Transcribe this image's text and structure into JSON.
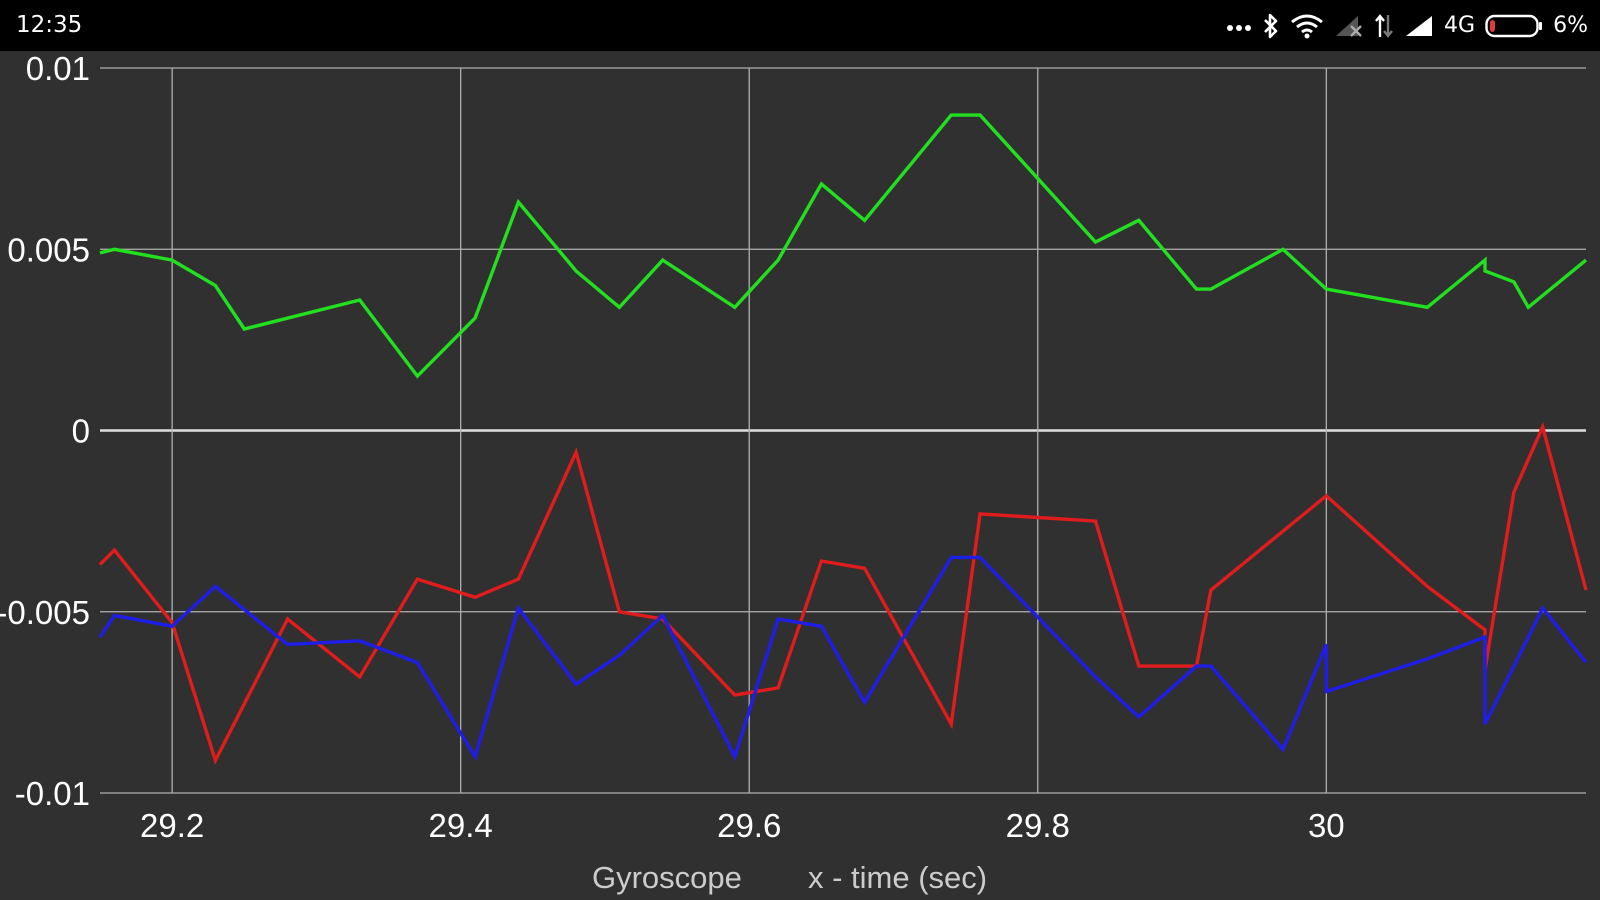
{
  "status_bar": {
    "time": "12:35",
    "network_label": "4G",
    "battery_label": "6%",
    "icons": [
      "more-dots-icon",
      "bluetooth-icon",
      "wifi-icon",
      "signal-no-sim-icon",
      "data-transfer-icon",
      "signal-icon",
      "battery-icon"
    ]
  },
  "chart_data": {
    "type": "line",
    "title": "",
    "footer_labels": [
      "Gyroscope",
      "x - time (sec)"
    ],
    "xlabel": "x - time (sec)",
    "ylabel": "",
    "xlim": [
      29.15,
      30.18
    ],
    "ylim": [
      -0.01,
      0.01
    ],
    "x_ticks": [
      29.2,
      29.4,
      29.6,
      29.8,
      30
    ],
    "x_tick_labels": [
      "29.2",
      "29.4",
      "29.6",
      "29.8",
      "30"
    ],
    "y_ticks": [
      0.01,
      0.005,
      0,
      -0.005,
      -0.01
    ],
    "y_tick_labels": [
      "0.01",
      "0.005",
      "0",
      "-0.005",
      "-0.01"
    ],
    "grid": true,
    "background": "#303030",
    "grid_color": "#b0b0b0",
    "zero_line_color": "#e0e0e0",
    "series": [
      {
        "color": "#22e01f",
        "x": [
          29.15,
          29.16,
          29.2,
          29.23,
          29.25,
          29.33,
          29.37,
          29.41,
          29.44,
          29.48,
          29.48,
          29.51,
          29.54,
          29.59,
          29.62,
          29.65,
          29.68,
          29.74,
          29.76,
          29.84,
          29.87,
          29.91,
          29.92,
          29.97,
          30.0,
          30.07,
          30.11,
          30.11,
          30.13,
          30.14,
          30.18
        ],
        "y": [
          0.0049,
          0.005,
          0.0047,
          0.004,
          0.0028,
          0.0036,
          0.0015,
          0.0031,
          0.0063,
          0.0044,
          0.0044,
          0.0034,
          0.0047,
          0.0034,
          0.0047,
          0.0068,
          0.0058,
          0.0087,
          0.0087,
          0.0052,
          0.0058,
          0.0039,
          0.0039,
          0.005,
          0.0039,
          0.0034,
          0.0047,
          0.0044,
          0.0041,
          0.0034,
          0.0047
        ]
      },
      {
        "color": "#e11c1c",
        "x": [
          29.15,
          29.16,
          29.2,
          29.23,
          29.28,
          29.33,
          29.37,
          29.41,
          29.44,
          29.48,
          29.51,
          29.54,
          29.59,
          29.62,
          29.65,
          29.68,
          29.74,
          29.76,
          29.84,
          29.87,
          29.91,
          29.92,
          30.0,
          30.0,
          30.07,
          30.11,
          30.11,
          30.13,
          30.15,
          30.18
        ],
        "y": [
          -0.0037,
          -0.0033,
          -0.0053,
          -0.0091,
          -0.0052,
          -0.0068,
          -0.0041,
          -0.0046,
          -0.0041,
          -0.0006,
          -0.005,
          -0.0052,
          -0.0073,
          -0.0071,
          -0.0036,
          -0.0038,
          -0.0081,
          -0.0023,
          -0.0025,
          -0.0065,
          -0.0065,
          -0.0044,
          -0.0018,
          -0.0018,
          -0.0043,
          -0.0055,
          -0.0066,
          -0.0017,
          0.0001,
          -0.0044
        ]
      },
      {
        "color": "#1e1ee6",
        "x": [
          29.15,
          29.16,
          29.2,
          29.23,
          29.28,
          29.33,
          29.37,
          29.41,
          29.44,
          29.48,
          29.48,
          29.51,
          29.54,
          29.59,
          29.62,
          29.65,
          29.68,
          29.74,
          29.76,
          29.84,
          29.87,
          29.91,
          29.92,
          29.97,
          30.0,
          30.0,
          30.07,
          30.11,
          30.11,
          30.13,
          30.15,
          30.18
        ],
        "y": [
          -0.0057,
          -0.0051,
          -0.0054,
          -0.0043,
          -0.0059,
          -0.0058,
          -0.0064,
          -0.009,
          -0.0049,
          -0.007,
          -0.007,
          -0.0062,
          -0.0051,
          -0.009,
          -0.0052,
          -0.0054,
          -0.0075,
          -0.0035,
          -0.0035,
          -0.0068,
          -0.0079,
          -0.0065,
          -0.0065,
          -0.0088,
          -0.0059,
          -0.0072,
          -0.0063,
          -0.0057,
          -0.0081,
          -0.0065,
          -0.0049,
          -0.0064
        ]
      }
    ]
  }
}
